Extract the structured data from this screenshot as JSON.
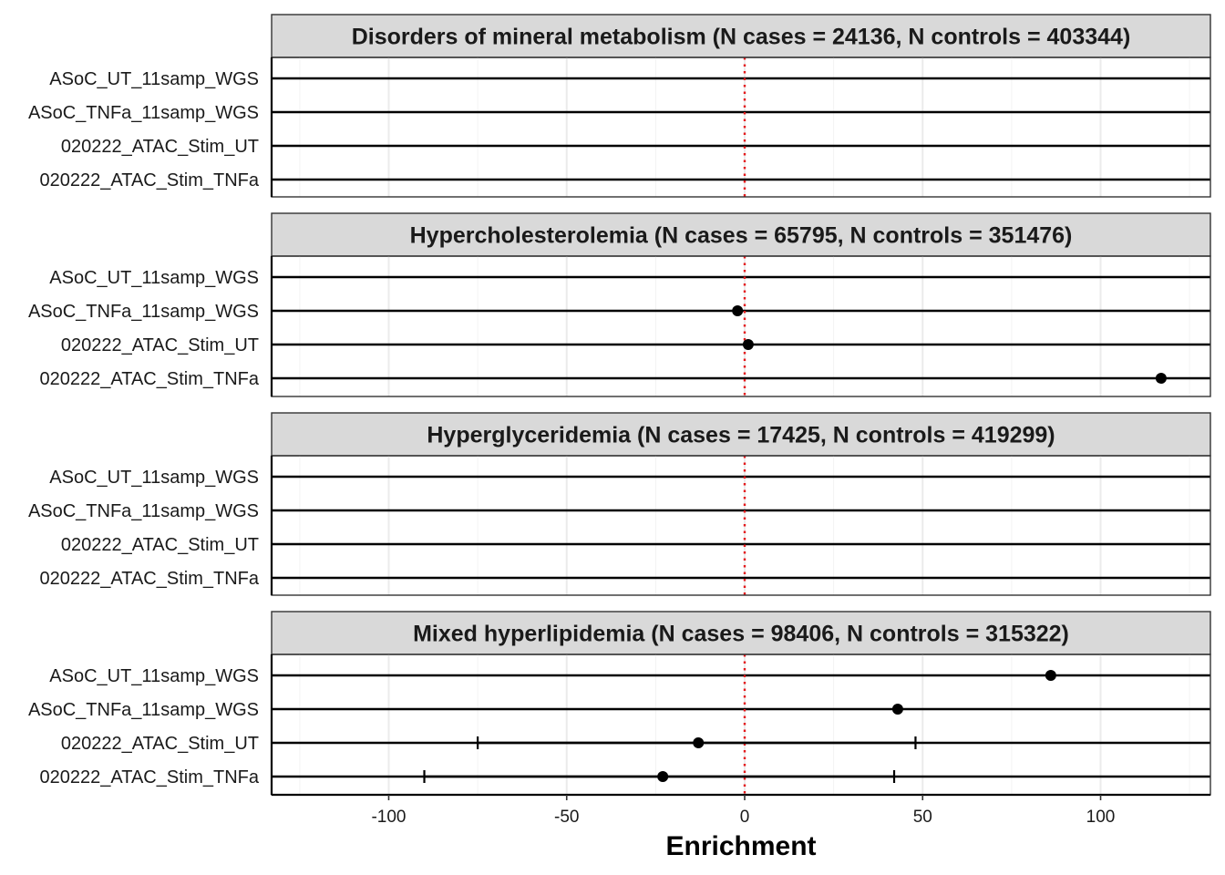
{
  "chart_data": {
    "type": "forest",
    "xlabel": "Enrichment",
    "xlim": [
      -128,
      131
    ],
    "xticks": [
      -100,
      -50,
      0,
      50,
      100
    ],
    "xtick_labels": [
      "-100",
      "-50",
      "0",
      "50",
      "100"
    ],
    "reference_line": {
      "x": 0,
      "style": "dotted",
      "color": "#e41a1c"
    },
    "grid": true,
    "row_labels": [
      "ASoC_UT_11samp_WGS",
      "ASoC_TNFa_11samp_WGS",
      "020222_ATAC_Stim_UT",
      "020222_ATAC_Stim_TNFa"
    ],
    "colors": {
      "strip_fill": "#d9d9d9",
      "grid": "#ebebeb",
      "line": "#000000",
      "point": "#000000"
    },
    "facets": [
      {
        "title": "Disorders of mineral metabolism (N cases = 24136, N controls = 403344)",
        "rows": [
          {
            "label": "ASoC_UT_11samp_WGS",
            "estimate": null,
            "ci": null
          },
          {
            "label": "ASoC_TNFa_11samp_WGS",
            "estimate": null,
            "ci": null
          },
          {
            "label": "020222_ATAC_Stim_UT",
            "estimate": null,
            "ci": null
          },
          {
            "label": "020222_ATAC_Stim_TNFa",
            "estimate": null,
            "ci": null
          }
        ]
      },
      {
        "title": "Hypercholesterolemia (N cases = 65795, N controls = 351476)",
        "rows": [
          {
            "label": "ASoC_UT_11samp_WGS",
            "estimate": null,
            "ci": null
          },
          {
            "label": "ASoC_TNFa_11samp_WGS",
            "estimate": -2,
            "ci": null
          },
          {
            "label": "020222_ATAC_Stim_UT",
            "estimate": 1,
            "ci": null
          },
          {
            "label": "020222_ATAC_Stim_TNFa",
            "estimate": 117,
            "ci": null
          }
        ]
      },
      {
        "title": "Hyperglyceridemia (N cases = 17425, N controls = 419299)",
        "rows": [
          {
            "label": "ASoC_UT_11samp_WGS",
            "estimate": null,
            "ci": null
          },
          {
            "label": "ASoC_TNFa_11samp_WGS",
            "estimate": null,
            "ci": null
          },
          {
            "label": "020222_ATAC_Stim_UT",
            "estimate": null,
            "ci": null
          },
          {
            "label": "020222_ATAC_Stim_TNFa",
            "estimate": null,
            "ci": null
          }
        ]
      },
      {
        "title": "Mixed hyperlipidemia (N cases = 98406, N controls = 315322)",
        "rows": [
          {
            "label": "ASoC_UT_11samp_WGS",
            "estimate": 86,
            "ci": null
          },
          {
            "label": "ASoC_TNFa_11samp_WGS",
            "estimate": 43,
            "ci": null
          },
          {
            "label": "020222_ATAC_Stim_UT",
            "estimate": -13,
            "ci": [
              -75,
              48
            ]
          },
          {
            "label": "020222_ATAC_Stim_TNFa",
            "estimate": -23,
            "ci": [
              -90,
              42
            ]
          }
        ]
      }
    ]
  }
}
